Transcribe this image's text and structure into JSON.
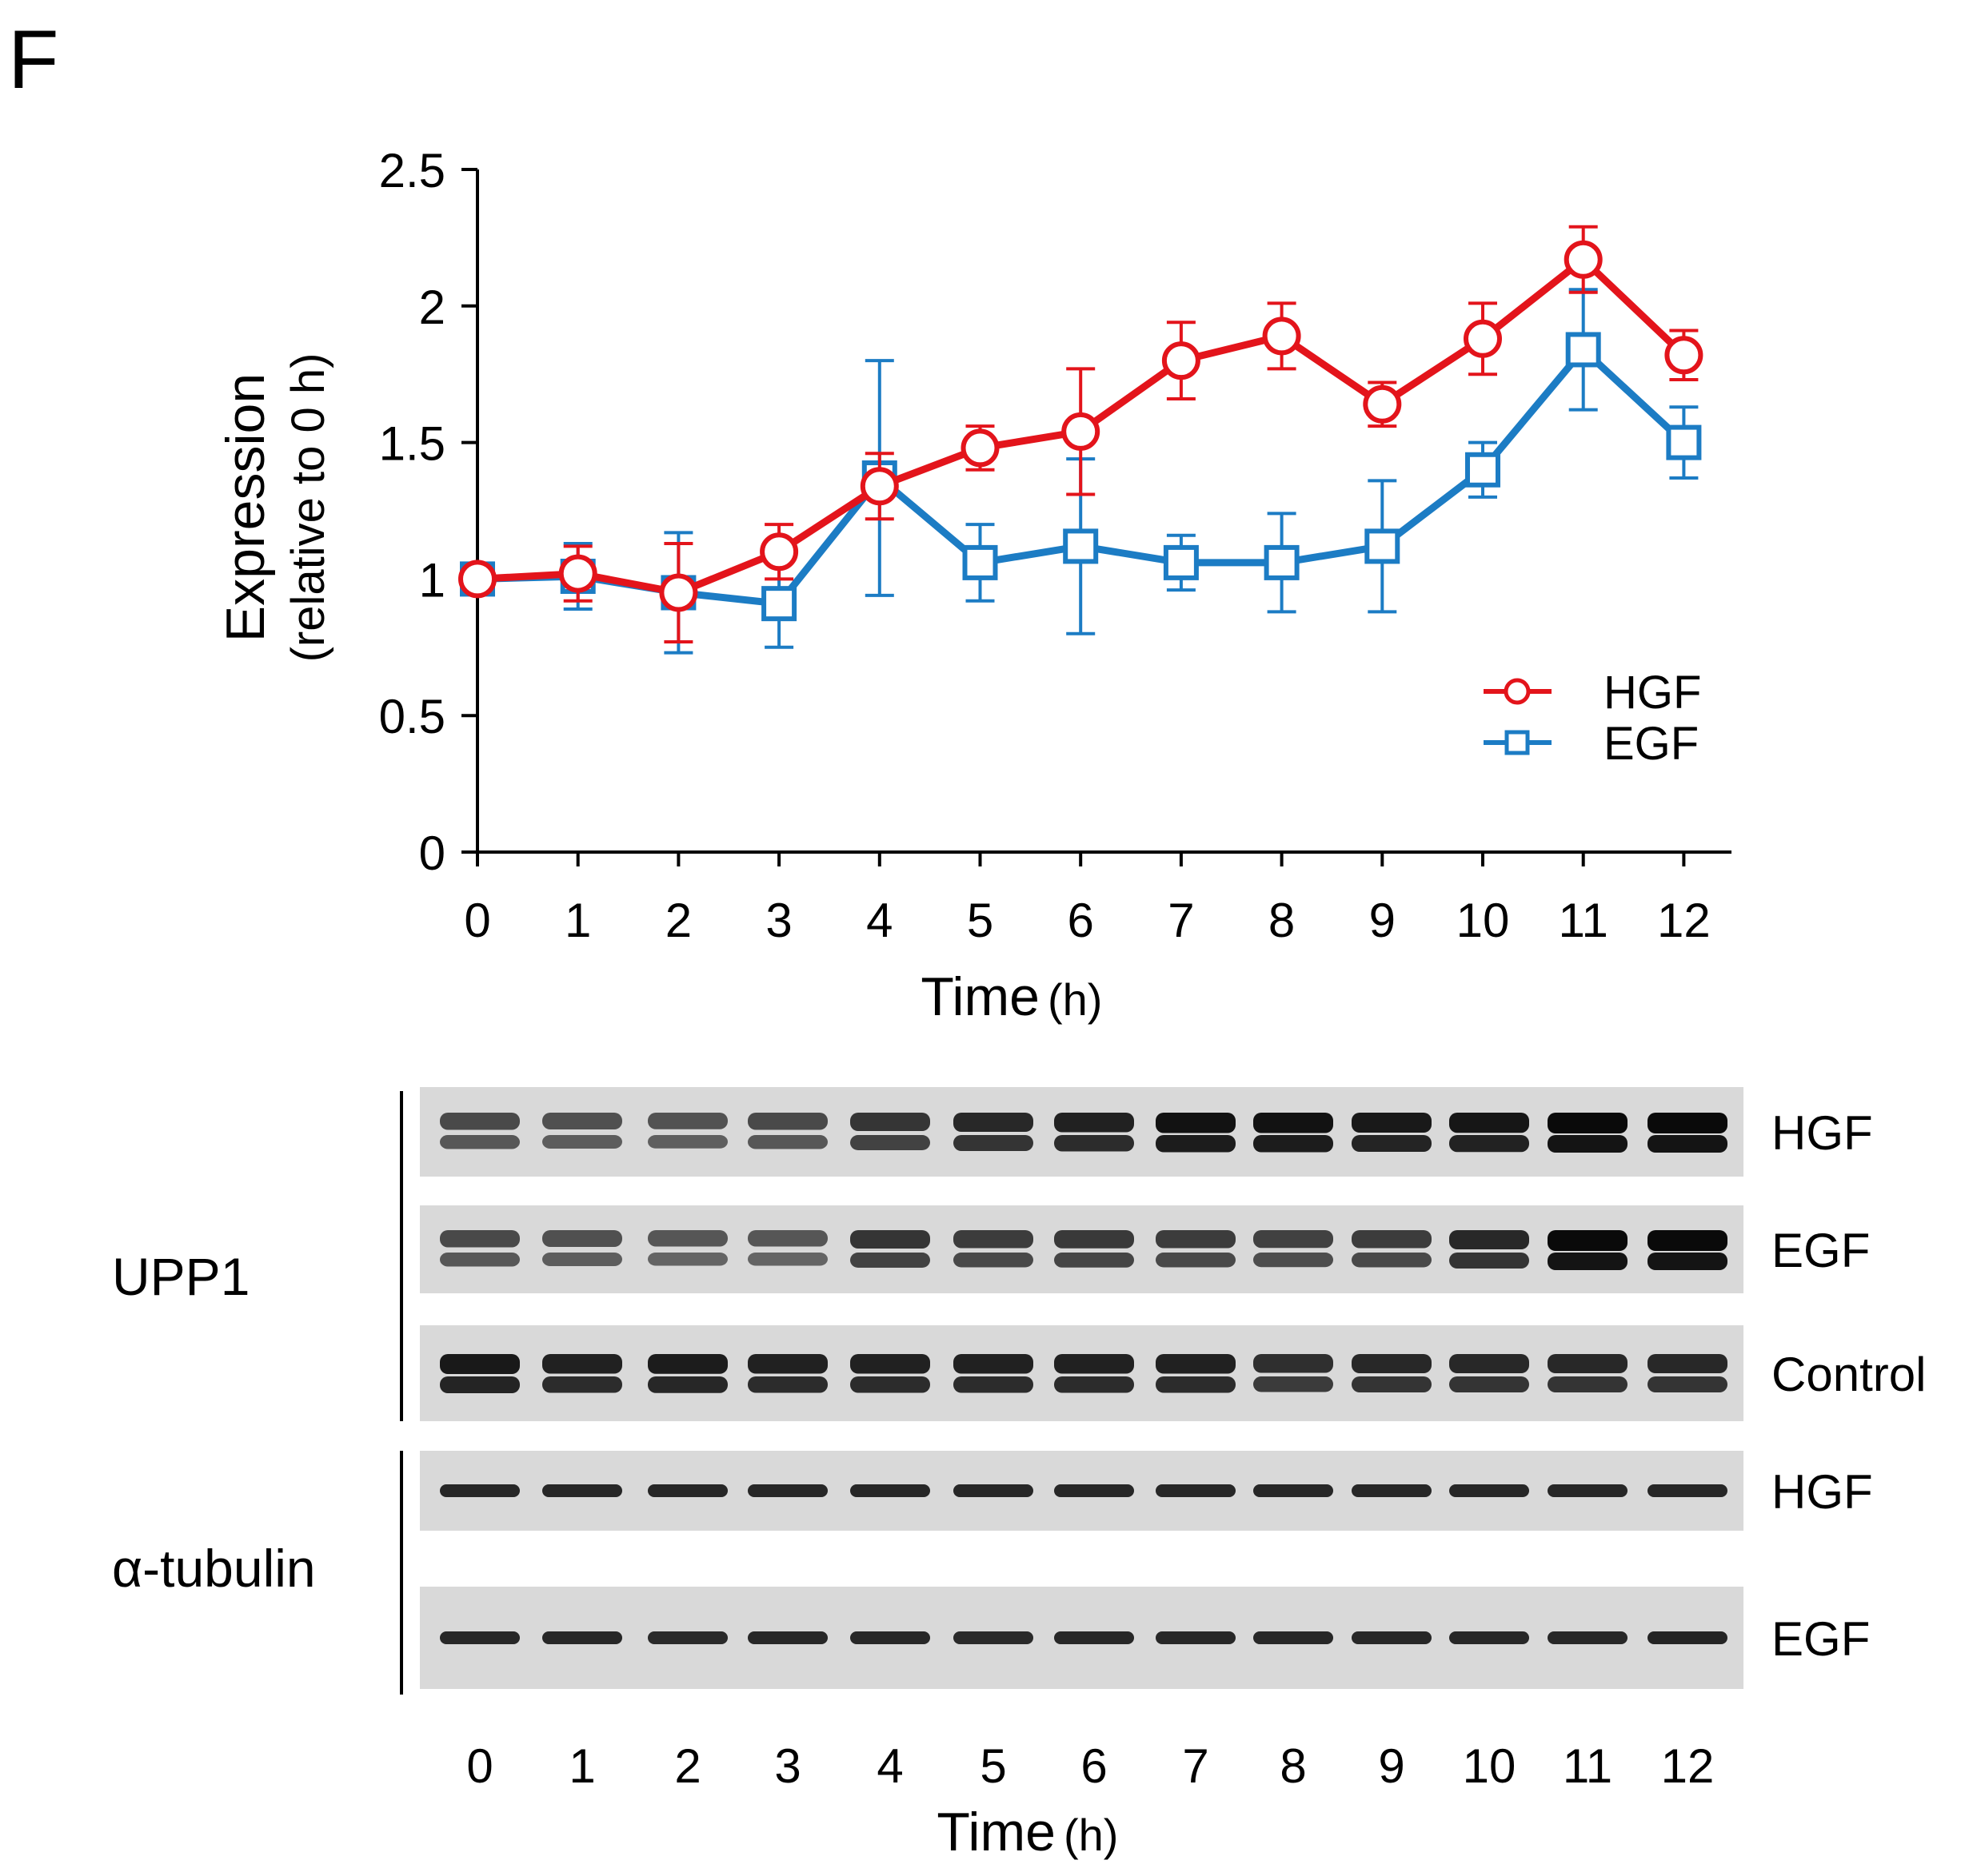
{
  "panel_label": "F",
  "colors": {
    "hgf": "#e3141b",
    "egf": "#1c7cc4",
    "axis": "#000000",
    "blot_bg": "#d9d9d9"
  },
  "chart_data": {
    "type": "line",
    "title": "",
    "xlabel": "Time",
    "xlabel_unit": "(h)",
    "ylabel": "Expression",
    "ylabel_sub": "(relative to 0 h)",
    "x": [
      0,
      1,
      2,
      3,
      4,
      5,
      6,
      7,
      8,
      9,
      10,
      11,
      12
    ],
    "x_tick_labels": [
      "0",
      "1",
      "2",
      "3",
      "4",
      "5",
      "6",
      "7",
      "8",
      "9",
      "10",
      "11",
      "12"
    ],
    "ylim": [
      0,
      2.5
    ],
    "y_ticks": [
      0,
      0.5,
      1,
      1.5,
      2,
      2.5
    ],
    "y_tick_labels": [
      "0",
      "0.5",
      "1",
      "1.5",
      "2",
      "2.5"
    ],
    "legend_position": "bottom-right",
    "series": [
      {
        "name": "HGF",
        "color": "#e3141b",
        "marker": "circle",
        "values": [
          1.0,
          1.02,
          0.95,
          1.1,
          1.34,
          1.48,
          1.54,
          1.8,
          1.89,
          1.64,
          1.88,
          2.17,
          1.82
        ],
        "errors": [
          0.02,
          0.1,
          0.18,
          0.1,
          0.12,
          0.08,
          0.23,
          0.14,
          0.12,
          0.08,
          0.13,
          0.12,
          0.09
        ]
      },
      {
        "name": "EGF",
        "color": "#1c7cc4",
        "marker": "square",
        "values": [
          1.0,
          1.01,
          0.95,
          0.91,
          1.37,
          1.06,
          1.12,
          1.06,
          1.06,
          1.12,
          1.4,
          1.84,
          1.5
        ],
        "errors": [
          0.02,
          0.12,
          0.22,
          0.16,
          0.43,
          0.14,
          0.32,
          0.1,
          0.18,
          0.24,
          0.1,
          0.22,
          0.13
        ]
      }
    ]
  },
  "blot": {
    "group_labels": [
      "UPP1",
      "α-tubulin"
    ],
    "lane_labels": [
      "0",
      "1",
      "2",
      "3",
      "4",
      "5",
      "6",
      "7",
      "8",
      "9",
      "10",
      "11",
      "12"
    ],
    "xlabel": "Time",
    "xlabel_unit": "(h)",
    "rows": [
      {
        "label": "HGF",
        "group": "UPP1",
        "intensity": [
          0.55,
          0.5,
          0.48,
          0.55,
          0.7,
          0.8,
          0.85,
          0.95,
          0.95,
          0.9,
          0.92,
          1.0,
          1.0
        ],
        "double": true
      },
      {
        "label": "EGF",
        "group": "UPP1",
        "intensity": [
          0.55,
          0.5,
          0.45,
          0.45,
          0.7,
          0.65,
          0.68,
          0.65,
          0.62,
          0.65,
          0.8,
          1.0,
          1.0
        ],
        "double": true
      },
      {
        "label": "Control",
        "group": "UPP1",
        "intensity": [
          0.9,
          0.85,
          0.88,
          0.85,
          0.85,
          0.85,
          0.85,
          0.85,
          0.75,
          0.8,
          0.8,
          0.8,
          0.8
        ],
        "double": true
      },
      {
        "label": "HGF",
        "group": "α-tubulin",
        "intensity": [
          0.85,
          0.85,
          0.85,
          0.85,
          0.85,
          0.85,
          0.85,
          0.85,
          0.85,
          0.85,
          0.85,
          0.85,
          0.85
        ],
        "double": false
      },
      {
        "label": "EGF",
        "group": "α-tubulin",
        "intensity": [
          0.85,
          0.85,
          0.8,
          0.85,
          0.85,
          0.8,
          0.85,
          0.85,
          0.85,
          0.85,
          0.85,
          0.85,
          0.9
        ],
        "double": false
      }
    ]
  }
}
